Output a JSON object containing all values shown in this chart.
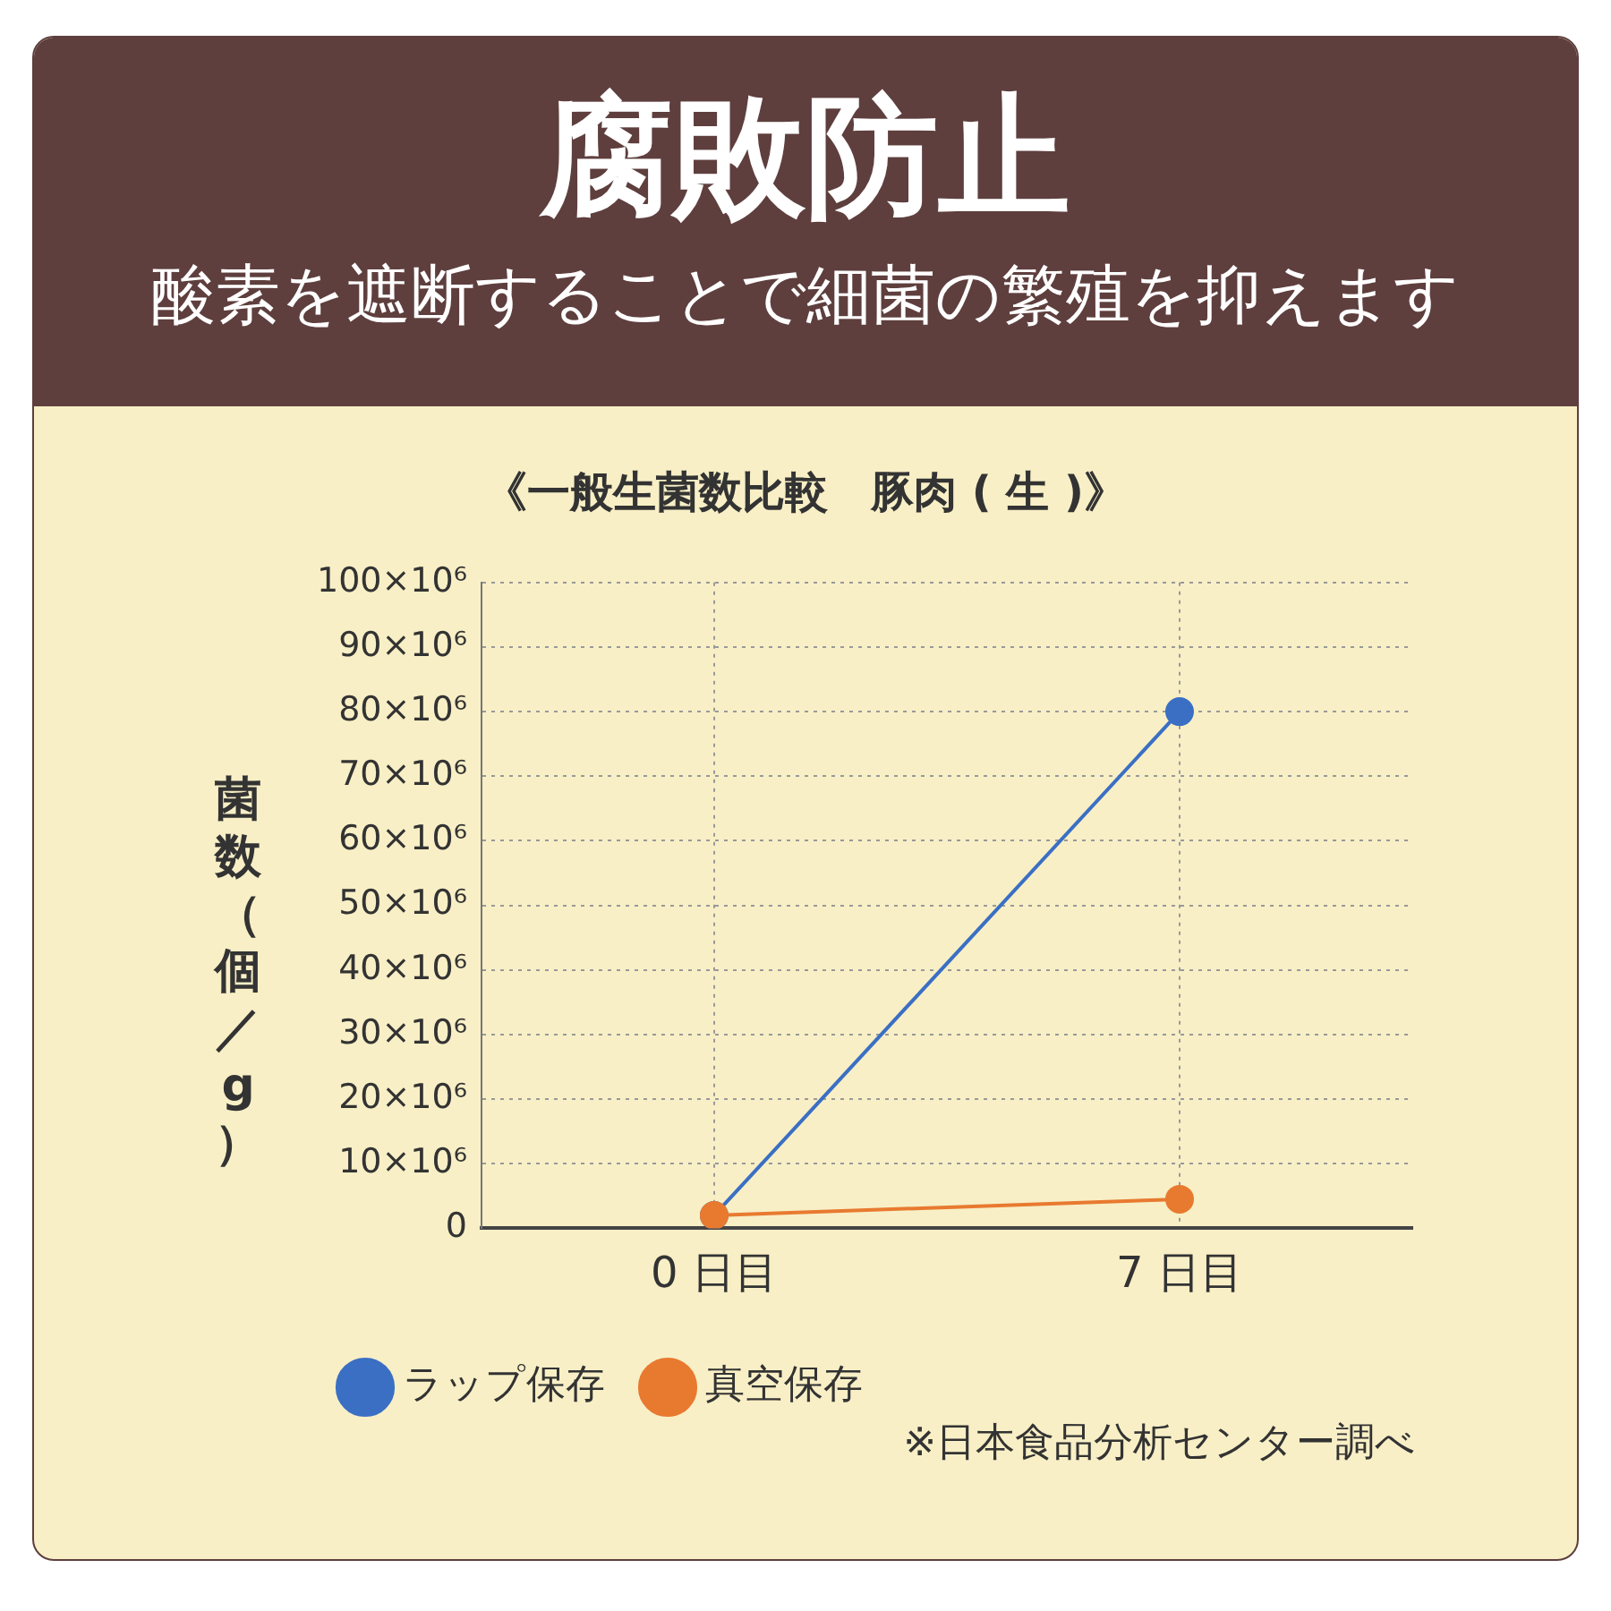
{
  "chart_data": {
    "type": "line",
    "title": "腐敗防止",
    "subtitle": "酸素を遮断することで細菌の繁殖を抑えます",
    "ylabel": "菌数（個／g）",
    "annotations": [
      "《一般生菌数比較　豚肉 ( 生 )》",
      "※日本食品分析センター調べ"
    ],
    "categories": [
      "0 日目",
      "7 日目"
    ],
    "series": [
      {
        "name": "ラップ保存",
        "color": "#3a6fc4",
        "values": [
          2000000,
          80000000
        ]
      },
      {
        "name": "真空保存",
        "color": "#e87a30",
        "values": [
          2000000,
          4500000
        ]
      }
    ],
    "ylim": [
      0,
      100000000
    ],
    "yticks": [
      0,
      {
        "value": 10000000,
        "label": "10×10⁶"
      },
      {
        "value": 20000000,
        "label": "20×10⁶"
      },
      {
        "value": 30000000,
        "label": "30×10⁶"
      },
      {
        "value": 40000000,
        "label": "40×10⁶"
      },
      {
        "value": 50000000,
        "label": "50×10⁶"
      },
      {
        "value": 60000000,
        "label": "60×10⁶"
      },
      {
        "value": 70000000,
        "label": "70×10⁶"
      },
      {
        "value": 80000000,
        "label": "80×10⁶"
      },
      {
        "value": 90000000,
        "label": "90×10⁶"
      },
      {
        "value": 100000000,
        "label": "100×10⁶"
      }
    ],
    "grid": true,
    "legend": "bottom",
    "marker": "circle",
    "line_style": "solid"
  }
}
